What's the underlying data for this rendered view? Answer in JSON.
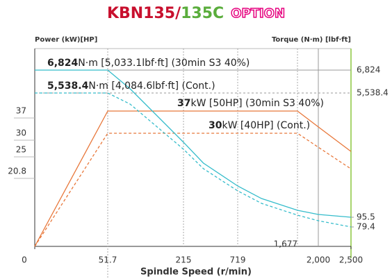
{
  "chart_data": {
    "type": "line",
    "title": {
      "part1": "KBN135/",
      "part2": "135C",
      "part3": "OPTION"
    },
    "ylabel": "Power (kW)[HP]",
    "y2label": "Torque (N·m) [lbf·ft]",
    "xlabel": "Spindle Speed (r/min)",
    "x": [
      0,
      51.7,
      100,
      215,
      400,
      719,
      1100,
      1677,
      2000,
      2500
    ],
    "xlim": [
      0,
      2500
    ],
    "xticks": [
      0,
      51.7,
      215,
      719,
      {
        "value": 1677,
        "label": "1,677"
      },
      {
        "value": 2000,
        "label": "2,000"
      },
      {
        "value": 2500,
        "label": "2,500"
      }
    ],
    "ylim": [
      0,
      56
    ],
    "yticks": [
      20.8,
      25,
      30,
      37
    ],
    "y2lim": [
      0,
      8000
    ],
    "y2ticks": [
      79.4,
      95.5,
      {
        "value": 5538.4,
        "label": "5,538.4"
      },
      {
        "value": 6824,
        "label": "6,824"
      }
    ],
    "series": [
      {
        "color": "#e8773a",
        "dashed": false,
        "values": [
          0,
          37,
          37,
          37,
          37,
          37,
          37,
          37,
          32,
          24.7
        ]
      },
      {
        "color": "#e8773a",
        "dashed": true,
        "values": [
          0,
          30,
          30,
          30,
          30,
          30,
          30,
          30,
          25.8,
          21.3
        ]
      },
      {
        "color": "#34bccb",
        "dashed": false,
        "axis": "y2",
        "values": [
          6824,
          6824,
          5772,
          3380,
          2467,
          1464,
          916,
          400,
          217,
          95.5
        ]
      },
      {
        "color": "#34bccb",
        "dashed": true,
        "axis": "y2",
        "values": [
          5538.4,
          5538.4,
          5052,
          3075,
          2224,
          1251,
          704,
          187,
          89.7,
          79.4
        ]
      }
    ],
    "annotations": [
      {
        "bold": "6,824",
        "text": "N·m [5,033.1lbf·ft] (30min S3 40%)"
      },
      {
        "bold": "5,538.4",
        "text": "N·m [4,084.6lbf·ft] (Cont.)"
      },
      {
        "bold": "37",
        "text": "kW [50HP] (30min S3 40%)"
      },
      {
        "bold": "30",
        "text": "kW [40HP] (Cont.)"
      }
    ]
  }
}
